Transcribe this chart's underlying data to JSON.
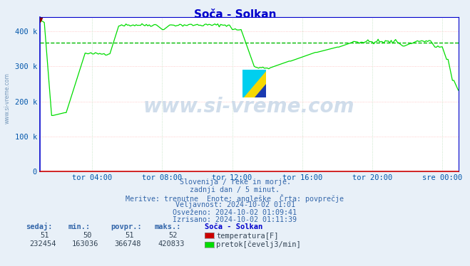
{
  "title": "Soča - Solkan",
  "bg_color": "#e8f0f8",
  "plot_bg_color": "#ffffff",
  "line_color_flow": "#00dd00",
  "line_color_temp": "#cc0000",
  "avg_line_color": "#00bb00",
  "grid_color_h": "#ffbbbb",
  "grid_color_v": "#bbddbb",
  "ylim": [
    0,
    440000
  ],
  "yticks": [
    0,
    100000,
    200000,
    300000,
    400000
  ],
  "ytick_labels": [
    "0",
    "100 k",
    "200 k",
    "300 k",
    "400 k"
  ],
  "xtick_labels": [
    "tor 04:00",
    "tor 08:00",
    "tor 12:00",
    "tor 16:00",
    "tor 20:00",
    "sre 00:00"
  ],
  "xtick_positions": [
    35.9,
    83.9,
    131.9,
    179.9,
    227.9,
    275.9
  ],
  "avg_flow": 366748,
  "n_points": 288,
  "text_lines": [
    "Slovenija / reke in morje.",
    "zadnji dan / 5 minut.",
    "Meritve: trenutne  Enote: angleške  Črta: povprečje",
    "Veljavnost: 2024-10-02 01:01",
    "Osveženo: 2024-10-02 01:09:41",
    "Izrisano: 2024-10-02 01:11:39"
  ],
  "table_headers": [
    "sedaj:",
    "min.:",
    "povpr.:",
    "maks.:"
  ],
  "table_row1": [
    "51",
    "50",
    "51",
    "52"
  ],
  "table_row2": [
    "232454",
    "163036",
    "366748",
    "420833"
  ],
  "legend_label1": "temperatura[F]",
  "legend_label2": "pretok[čevelj3/min]",
  "station_label": "Soča - Solkan",
  "watermark": "www.si-vreme.com",
  "spine_color_lr": "#0000cc",
  "spine_color_bottom": "#cc0000",
  "spine_color_top": "#0000cc",
  "tick_color": "#0055aa",
  "text_color": "#3366aa",
  "title_color": "#0000cc"
}
